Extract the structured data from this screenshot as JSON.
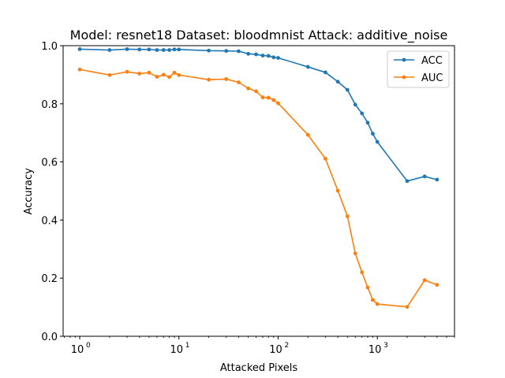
{
  "chart_data": {
    "type": "line",
    "title": "Model: resnet18 Dataset: bloodmnist Attack: additive_noise",
    "xlabel": "Attacked Pixels",
    "ylabel": "Accuracy",
    "xscale": "log",
    "xlim": [
      0.68,
      6000
    ],
    "ylim": [
      0.0,
      1.0
    ],
    "y_ticks": [
      0.0,
      0.2,
      0.4,
      0.6,
      0.8,
      1.0
    ],
    "y_tick_labels": [
      "0.0",
      "0.2",
      "0.4",
      "0.6",
      "0.8",
      "1.0"
    ],
    "x_major_ticks": [
      1,
      10,
      100,
      1000
    ],
    "x_tick_labels": [
      "10",
      "10",
      "10",
      "10"
    ],
    "x_tick_exponents": [
      "0",
      "1",
      "2",
      "3"
    ],
    "grid": false,
    "legend_position": "top-right",
    "x": [
      1,
      2,
      3,
      4,
      5,
      6,
      7,
      8,
      9,
      10,
      20,
      30,
      40,
      50,
      60,
      70,
      80,
      90,
      100,
      200,
      300,
      400,
      500,
      600,
      700,
      800,
      900,
      1000,
      2000,
      3000,
      4000
    ],
    "series": [
      {
        "name": "ACC",
        "color": "#1f77b4",
        "values": [
          0.988,
          0.985,
          0.988,
          0.987,
          0.987,
          0.985,
          0.985,
          0.985,
          0.987,
          0.987,
          0.983,
          0.982,
          0.981,
          0.972,
          0.97,
          0.966,
          0.965,
          0.96,
          0.958,
          0.927,
          0.908,
          0.876,
          0.848,
          0.797,
          0.767,
          0.735,
          0.697,
          0.669,
          0.534,
          0.55,
          0.539
        ]
      },
      {
        "name": "AUC",
        "color": "#ff7f0e",
        "values": [
          0.918,
          0.899,
          0.91,
          0.904,
          0.907,
          0.893,
          0.9,
          0.892,
          0.907,
          0.899,
          0.883,
          0.885,
          0.874,
          0.853,
          0.843,
          0.822,
          0.821,
          0.813,
          0.802,
          0.693,
          0.611,
          0.501,
          0.413,
          0.285,
          0.22,
          0.168,
          0.125,
          0.111,
          0.101,
          0.193,
          0.177
        ]
      }
    ]
  }
}
